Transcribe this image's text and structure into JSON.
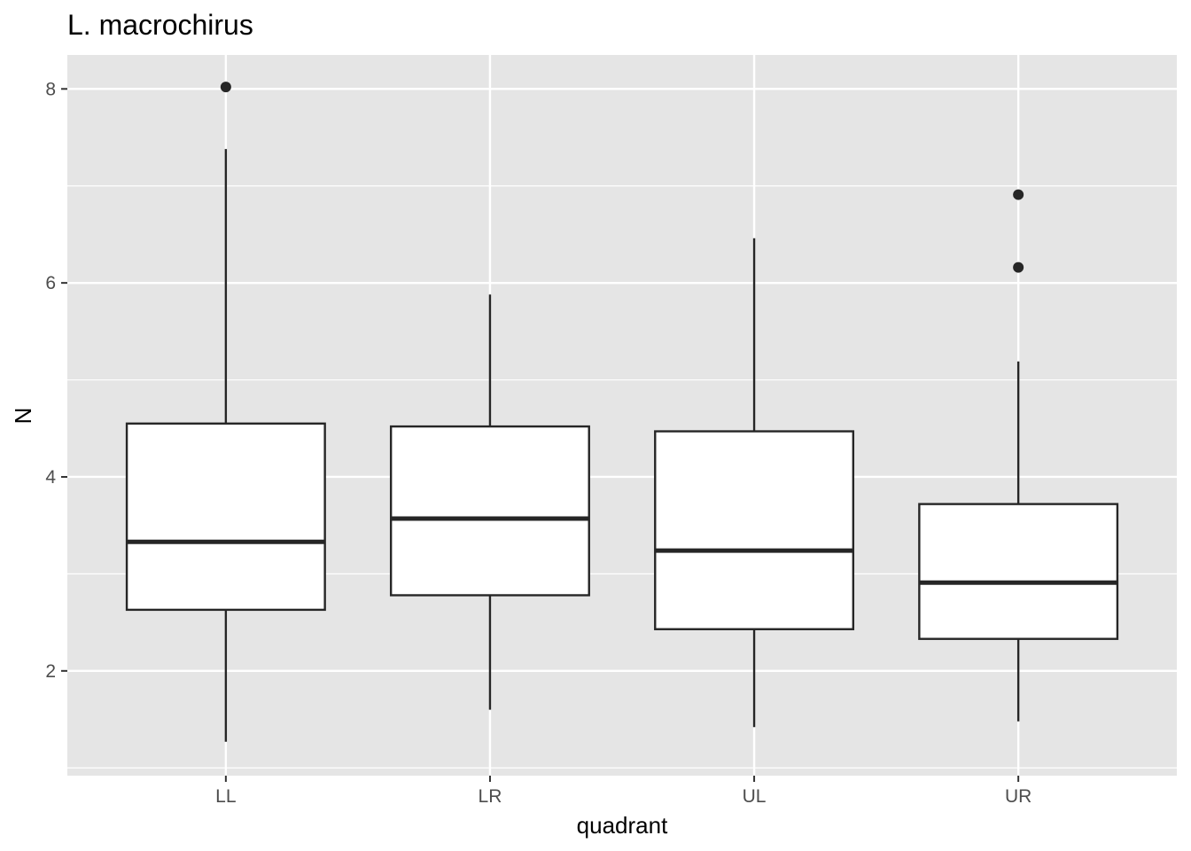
{
  "chart_data": {
    "type": "boxplot",
    "title": "L. macrochirus",
    "xlabel": "quadrant",
    "ylabel": "N",
    "ylim": [
      0.92,
      8.35
    ],
    "yticks": [
      2,
      4,
      6,
      8
    ],
    "yticks_minor": [
      1,
      3,
      5,
      7
    ],
    "grid": true,
    "categories": [
      "LL",
      "LR",
      "UL",
      "UR"
    ],
    "boxes": [
      {
        "category": "LL",
        "lower_whisker": 1.27,
        "q1": 2.63,
        "median": 3.33,
        "q3": 4.55,
        "upper_whisker": 7.38,
        "outliers": [
          8.02
        ]
      },
      {
        "category": "LR",
        "lower_whisker": 1.6,
        "q1": 2.78,
        "median": 3.57,
        "q3": 4.52,
        "upper_whisker": 5.88,
        "outliers": []
      },
      {
        "category": "UL",
        "lower_whisker": 1.42,
        "q1": 2.43,
        "median": 3.24,
        "q3": 4.47,
        "upper_whisker": 6.46,
        "outliers": []
      },
      {
        "category": "UR",
        "lower_whisker": 1.48,
        "q1": 2.33,
        "median": 2.91,
        "q3": 3.72,
        "upper_whisker": 5.19,
        "outliers": [
          6.91,
          6.16
        ]
      }
    ],
    "colors": {
      "panel_background": "#e5e5e5",
      "grid": "#ffffff",
      "box_fill": "#ffffff",
      "box_stroke": "#262626",
      "tick_label": "#4d4d4d",
      "tick_mark": "#333333"
    }
  }
}
